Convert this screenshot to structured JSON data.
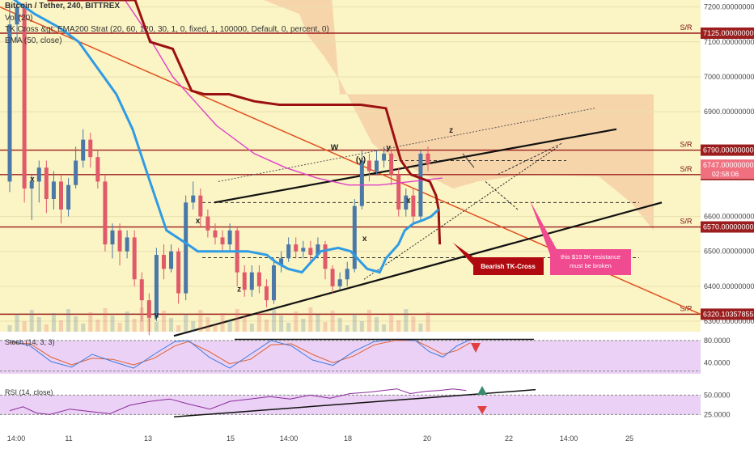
{
  "legend": {
    "title": "Bitcoin / Tether, 240, BITTREX",
    "vol": "Vol (20)",
    "strategy": "TK Cross &gt; EMA200 Strat (20, 60, 120, 30, 1, 0, fixed, 1, 100000, Default, 0, percent, 0)",
    "ema": "EMA (50, close)"
  },
  "colors": {
    "background": "#fbf4c4",
    "sr_line": "#9b1d1d",
    "kijun": "#9b1111",
    "tenkan": "#2f9be3",
    "ema": "#e040c8",
    "cloud": "#f5c8a0",
    "bull": "#4a78a8",
    "bear": "#e05a6a",
    "trend_red": "#e05020",
    "stoch_bg": "#e6c6f2",
    "annot_red": "#b00a10",
    "annot_pink": "#f04a90"
  },
  "chart_data": {
    "type": "candlestick",
    "price_ylim": [
      6270,
      7220
    ],
    "price_ticks": [
      "7200.00000000",
      "7100.00000000",
      "7000.00000000",
      "6900.00000000",
      "6600.00000000",
      "6500.00000000",
      "6400.00000000",
      "6300.00000000"
    ],
    "sr_levels": [
      {
        "value": 7125,
        "label": "7125.00000000",
        "tag": "S/R"
      },
      {
        "value": 6790,
        "label": "6790.00000000",
        "tag": "S/R"
      },
      {
        "value": 6720,
        "label": "6720.00000000",
        "tag": "S/R"
      },
      {
        "value": 6570,
        "label": "6570.00000000",
        "tag": "S/R"
      },
      {
        "value": 6320.10357855,
        "label": "6320.10357855",
        "tag": "S/R"
      }
    ],
    "current_price": {
      "value": 6747,
      "label": "6747.00000000",
      "countdown": "02:58:06"
    },
    "x_ticks": [
      "14:00",
      "11",
      "13",
      "15",
      "14:00",
      "18",
      "20",
      "22",
      "14:00",
      "25"
    ],
    "candles": [
      [
        6700,
        7150,
        6670,
        7210
      ],
      [
        7150,
        7200,
        7100,
        7215
      ],
      [
        7200,
        6680,
        6640,
        7210
      ],
      [
        6680,
        6700,
        6590,
        6720
      ],
      [
        6700,
        6740,
        6640,
        6760
      ],
      [
        6740,
        6650,
        6610,
        6760
      ],
      [
        6650,
        6700,
        6620,
        6730
      ],
      [
        6700,
        6620,
        6580,
        6720
      ],
      [
        6620,
        6690,
        6600,
        6710
      ],
      [
        6690,
        6760,
        6680,
        6800
      ],
      [
        6760,
        6820,
        6740,
        6850
      ],
      [
        6820,
        6770,
        6740,
        6840
      ],
      [
        6770,
        6700,
        6680,
        6790
      ],
      [
        6700,
        6520,
        6500,
        6720
      ],
      [
        6520,
        6560,
        6480,
        6580
      ],
      [
        6560,
        6500,
        6460,
        6580
      ],
      [
        6500,
        6540,
        6480,
        6560
      ],
      [
        6540,
        6420,
        6400,
        6560
      ],
      [
        6420,
        6360,
        6300,
        6440
      ],
      [
        6360,
        6310,
        6260,
        6380
      ],
      [
        6310,
        6490,
        6300,
        6510
      ],
      [
        6490,
        6450,
        6420,
        6520
      ],
      [
        6450,
        6500,
        6440,
        6520
      ],
      [
        6500,
        6380,
        6350,
        6510
      ],
      [
        6380,
        6640,
        6360,
        6660
      ],
      [
        6640,
        6660,
        6620,
        6700
      ],
      [
        6660,
        6600,
        6570,
        6680
      ],
      [
        6600,
        6560,
        6540,
        6620
      ],
      [
        6560,
        6540,
        6520,
        6580
      ],
      [
        6540,
        6520,
        6500,
        6560
      ],
      [
        6520,
        6560,
        6500,
        6580
      ],
      [
        6560,
        6440,
        6400,
        6570
      ],
      [
        6440,
        6390,
        6370,
        6460
      ],
      [
        6390,
        6440,
        6370,
        6460
      ],
      [
        6440,
        6400,
        6380,
        6460
      ],
      [
        6400,
        6360,
        6340,
        6420
      ],
      [
        6360,
        6460,
        6350,
        6480
      ],
      [
        6460,
        6480,
        6440,
        6500
      ],
      [
        6480,
        6520,
        6470,
        6540
      ],
      [
        6520,
        6500,
        6480,
        6540
      ],
      [
        6500,
        6510,
        6480,
        6530
      ],
      [
        6510,
        6490,
        6470,
        6530
      ],
      [
        6490,
        6520,
        6480,
        6540
      ],
      [
        6520,
        6450,
        6420,
        6530
      ],
      [
        6450,
        6400,
        6380,
        6460
      ],
      [
        6400,
        6420,
        6390,
        6440
      ],
      [
        6420,
        6450,
        6400,
        6470
      ],
      [
        6450,
        6630,
        6440,
        6650
      ],
      [
        6630,
        6760,
        6620,
        6790
      ],
      [
        6760,
        6730,
        6700,
        6780
      ],
      [
        6730,
        6760,
        6720,
        6790
      ],
      [
        6760,
        6780,
        6740,
        6800
      ],
      [
        6780,
        6720,
        6690,
        6790
      ],
      [
        6720,
        6620,
        6600,
        6740
      ],
      [
        6620,
        6660,
        6600,
        6680
      ],
      [
        6660,
        6600,
        6580,
        6680
      ],
      [
        6600,
        6780,
        6590,
        6790
      ],
      [
        6780,
        6750,
        6730,
        6800
      ]
    ],
    "tenkan": [
      [
        0,
        7230
      ],
      [
        20,
        7180
      ],
      [
        40,
        7140
      ],
      [
        55,
        7100
      ],
      [
        85,
        6950
      ],
      [
        98,
        6850
      ],
      [
        110,
        6720
      ],
      [
        125,
        6560
      ],
      [
        142,
        6520
      ],
      [
        150,
        6500
      ],
      [
        178,
        6500
      ],
      [
        190,
        6500
      ],
      [
        205,
        6490
      ],
      [
        212,
        6470
      ],
      [
        222,
        6450
      ],
      [
        233,
        6440
      ],
      [
        248,
        6500
      ],
      [
        262,
        6510
      ],
      [
        272,
        6500
      ],
      [
        285,
        6450
      ],
      [
        295,
        6440
      ],
      [
        300,
        6480
      ],
      [
        310,
        6520
      ],
      [
        315,
        6560
      ],
      [
        322,
        6580
      ],
      [
        330,
        6590
      ],
      [
        336,
        6600
      ],
      [
        342,
        6620
      ]
    ],
    "kijun": [
      [
        30,
        7220
      ],
      [
        100,
        7220
      ],
      [
        112,
        7100
      ],
      [
        130,
        7080
      ],
      [
        145,
        6960
      ],
      [
        155,
        6950
      ],
      [
        175,
        6950
      ],
      [
        195,
        6930
      ],
      [
        215,
        6920
      ],
      [
        280,
        6920
      ],
      [
        300,
        6910
      ],
      [
        312,
        6760
      ],
      [
        320,
        6720
      ],
      [
        335,
        6700
      ],
      [
        340,
        6660
      ],
      [
        342,
        6620
      ],
      [
        343,
        6520
      ]
    ],
    "ema50": [
      [
        90,
        7230
      ],
      [
        105,
        7150
      ],
      [
        130,
        7000
      ],
      [
        165,
        6860
      ],
      [
        195,
        6780
      ],
      [
        220,
        6740
      ],
      [
        245,
        6710
      ],
      [
        270,
        6690
      ],
      [
        295,
        6690
      ],
      [
        320,
        6700
      ],
      [
        345,
        6710
      ]
    ],
    "stoch": {
      "label": "Stoch (14, 3, 3)",
      "ylim": [
        20,
        90
      ],
      "ticks": [
        {
          "value": 80,
          "label": "80.0000"
        },
        {
          "value": 40,
          "label": "40.0000"
        }
      ],
      "k": [
        [
          0,
          80
        ],
        [
          15,
          70
        ],
        [
          30,
          42
        ],
        [
          45,
          32
        ],
        [
          60,
          55
        ],
        [
          75,
          42
        ],
        [
          90,
          30
        ],
        [
          105,
          55
        ],
        [
          120,
          78
        ],
        [
          130,
          80
        ],
        [
          145,
          50
        ],
        [
          160,
          30
        ],
        [
          175,
          55
        ],
        [
          190,
          80
        ],
        [
          205,
          70
        ],
        [
          220,
          45
        ],
        [
          235,
          35
        ],
        [
          250,
          60
        ],
        [
          265,
          78
        ],
        [
          280,
          82
        ],
        [
          295,
          80
        ],
        [
          305,
          60
        ],
        [
          315,
          50
        ],
        [
          325,
          70
        ],
        [
          335,
          82
        ]
      ],
      "d": [
        [
          0,
          76
        ],
        [
          15,
          74
        ],
        [
          30,
          50
        ],
        [
          45,
          36
        ],
        [
          60,
          48
        ],
        [
          75,
          46
        ],
        [
          90,
          36
        ],
        [
          105,
          48
        ],
        [
          120,
          70
        ],
        [
          130,
          78
        ],
        [
          145,
          60
        ],
        [
          160,
          38
        ],
        [
          175,
          46
        ],
        [
          190,
          72
        ],
        [
          205,
          74
        ],
        [
          220,
          55
        ],
        [
          235,
          40
        ],
        [
          250,
          52
        ],
        [
          265,
          72
        ],
        [
          280,
          80
        ],
        [
          295,
          80
        ],
        [
          305,
          68
        ],
        [
          315,
          55
        ],
        [
          325,
          62
        ],
        [
          335,
          76
        ]
      ]
    },
    "rsi": {
      "label": "RSI (14, close)",
      "ylim": [
        15,
        65
      ],
      "ticks": [
        {
          "value": 50,
          "label": "50.0000"
        },
        {
          "value": 25,
          "label": "25.0000"
        }
      ],
      "values": [
        [
          0,
          30
        ],
        [
          10,
          35
        ],
        [
          20,
          27
        ],
        [
          30,
          25
        ],
        [
          45,
          32
        ],
        [
          60,
          29
        ],
        [
          75,
          26
        ],
        [
          90,
          37
        ],
        [
          105,
          42
        ],
        [
          120,
          45
        ],
        [
          135,
          38
        ],
        [
          150,
          32
        ],
        [
          165,
          42
        ],
        [
          180,
          45
        ],
        [
          195,
          48
        ],
        [
          210,
          45
        ],
        [
          225,
          50
        ],
        [
          240,
          46
        ],
        [
          255,
          52
        ],
        [
          270,
          54
        ],
        [
          280,
          56
        ],
        [
          290,
          58
        ],
        [
          300,
          52
        ],
        [
          312,
          55
        ],
        [
          322,
          56
        ],
        [
          332,
          58
        ],
        [
          342,
          56
        ]
      ]
    },
    "annotations": {
      "bearish": "Bearish TK-Cross",
      "resistance": "this $19.5K resistance must be broken",
      "letters": [
        {
          "text": "x",
          "p": [
            18,
            6700
          ]
        },
        {
          "text": "y",
          "p": [
            117,
            6310
          ]
        },
        {
          "text": "x",
          "p": [
            150,
            6580
          ]
        },
        {
          "text": "z",
          "p": [
            183,
            6385
          ]
        },
        {
          "text": "W",
          "p": [
            259,
            6790
          ]
        },
        {
          "text": "(y)",
          "p": [
            280,
            6755
          ]
        },
        {
          "text": "y",
          "p": [
            302,
            6790
          ]
        },
        {
          "text": "x",
          "p": [
            283,
            6530
          ]
        },
        {
          "text": "x",
          "p": [
            318,
            6640
          ]
        },
        {
          "text": "z",
          "p": [
            352,
            6840
          ]
        }
      ]
    }
  }
}
